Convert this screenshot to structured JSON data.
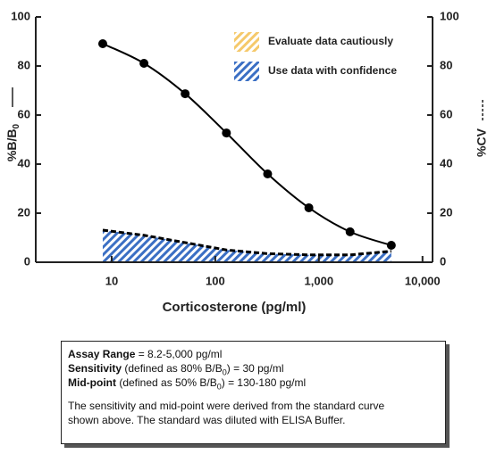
{
  "chart_data": {
    "type": "line",
    "x_label": "Corticosterone (pg/ml)",
    "y_label": "%B/B",
    "y_label_sub": "0",
    "y2_label": "%CV",
    "log_x": true,
    "x": [
      8.2,
      20.5,
      51.2,
      128,
      320,
      800,
      2000,
      5000
    ],
    "series": [
      {
        "color": "#000000",
        "values": [
          89.1,
          81.1,
          68.7,
          52.7,
          36,
          22.2,
          12.4,
          6.9
        ]
      },
      {
        "color": "#000000",
        "axis": "y2",
        "dashed": true,
        "fill": "#3b6fc4",
        "values": [
          13.1,
          11,
          8,
          5,
          3.5,
          3,
          3,
          4.5
        ]
      }
    ],
    "legend": [
      {
        "label": "Evaluate data cautiously",
        "color": "#f5c96b"
      },
      {
        "label": "Use data with confidence",
        "color": "#3b6fc4"
      }
    ],
    "xlim": [
      1.85,
      12500
    ],
    "xticks": [
      10,
      100,
      {
        "value": 1000,
        "label": "1,000"
      },
      {
        "value": 10000,
        "label": "10,000"
      }
    ],
    "ylim": [
      0,
      100
    ],
    "yticks": [
      0,
      20,
      40,
      60,
      80,
      100
    ],
    "y2lim": [
      0,
      100
    ],
    "y2ticks": [
      0,
      20,
      40,
      60,
      80,
      100
    ]
  },
  "info": {
    "lines": [
      [
        "Assay Range",
        " = 8.2-5,000 pg/ml"
      ],
      [
        "Sensitivity",
        " (defined as 80% B/B",
        "0",
        ") = 30 pg/ml"
      ],
      [
        "Mid-point",
        " (defined as 50% B/B",
        "0",
        ") = 130-180 pg/ml"
      ]
    ],
    "note": [
      "The sensitivity and mid-point were derived from the standard curve",
      "shown above. The standard was diluted with ELISA Buffer."
    ]
  }
}
